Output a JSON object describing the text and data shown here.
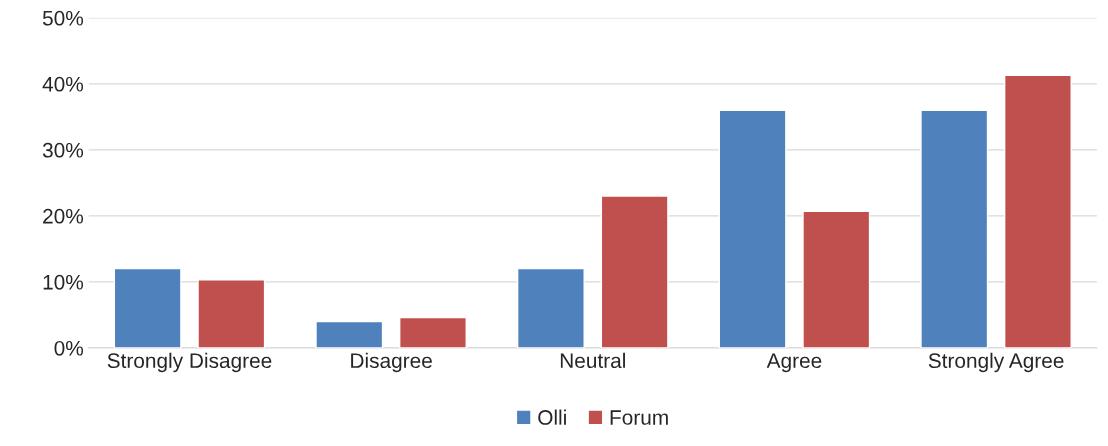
{
  "chart_data": {
    "type": "bar",
    "categories": [
      "Strongly Disagree",
      "Disagree",
      "Neutral",
      "Agree",
      "Strongly Agree"
    ],
    "series": [
      {
        "name": "Olli",
        "color": "#4f81bd",
        "values": [
          12,
          4,
          12,
          36,
          36
        ]
      },
      {
        "name": "Forum",
        "color": "#c0504d",
        "values": [
          10.3,
          4.6,
          23,
          20.7,
          41.3
        ]
      }
    ],
    "ylim": [
      0,
      50
    ],
    "yticks": [
      {
        "value": 0,
        "label": "0%"
      },
      {
        "value": 10,
        "label": "10%"
      },
      {
        "value": 20,
        "label": "20%"
      },
      {
        "value": 30,
        "label": "30%"
      },
      {
        "value": 40,
        "label": "40%"
      },
      {
        "value": 50,
        "label": "50%"
      }
    ],
    "grid": "y",
    "legend": "bottom"
  }
}
